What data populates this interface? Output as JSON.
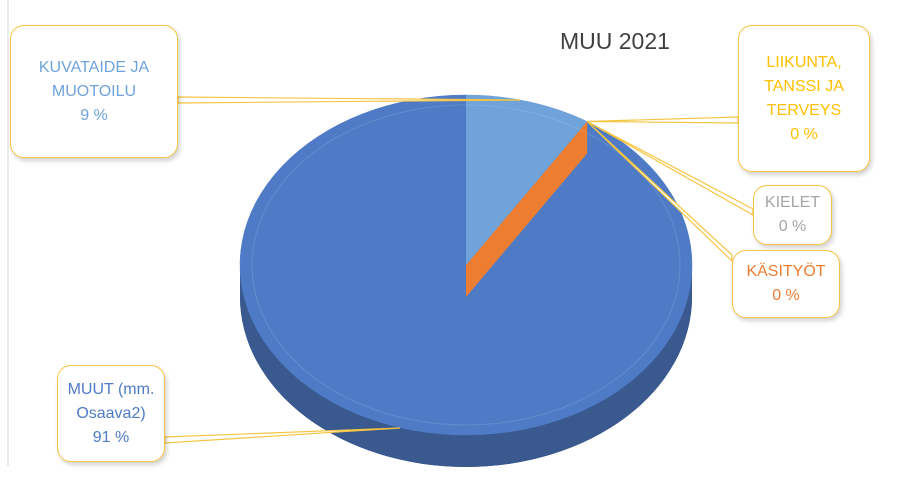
{
  "chart_data": {
    "type": "pie",
    "title": "MUU 2021",
    "categories": [
      "KUVATAIDE JA MUOTOILU",
      "LIIKUNTA, TANSSI JA TERVEYS",
      "KIELET",
      "KÄSITYÖT",
      "MUUT (mm. Osaava2)"
    ],
    "values": [
      9,
      0,
      0,
      0,
      91
    ],
    "value_labels": [
      "9 %",
      "0 %",
      "0 %",
      "0 %",
      "91 %"
    ],
    "colors": [
      "#6fa3da",
      "#ffc000",
      "#a5a5a5",
      "#ed7d31",
      "#4f7bc6"
    ]
  }
}
